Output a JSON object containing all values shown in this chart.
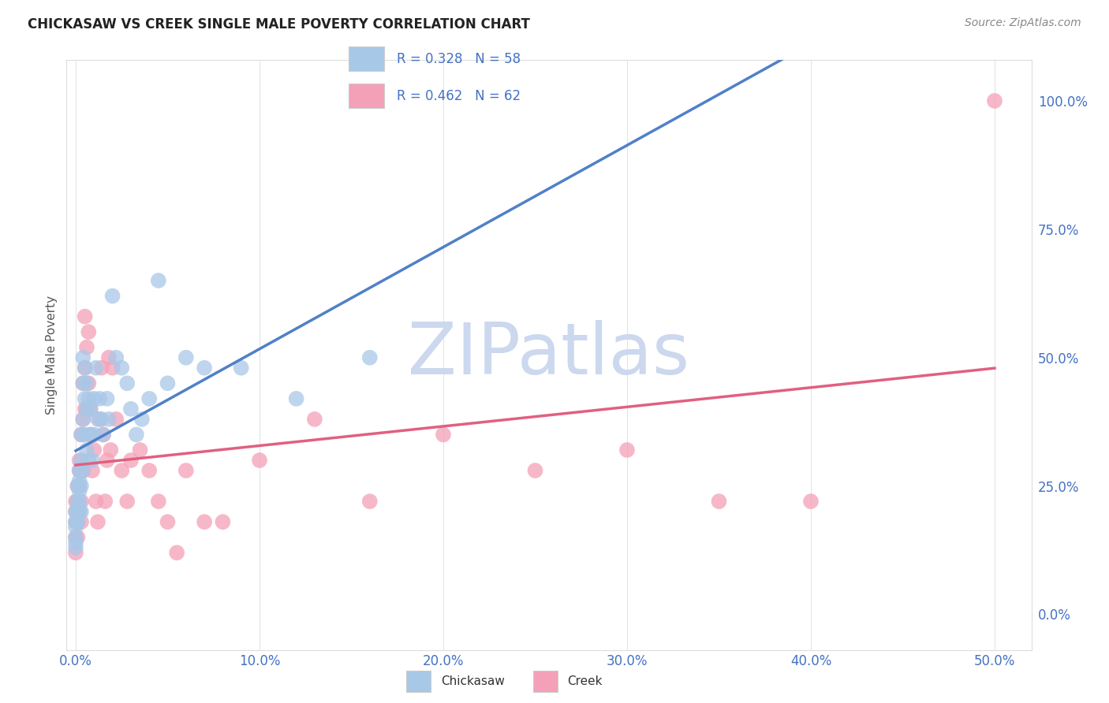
{
  "title": "CHICKASAW VS CREEK SINGLE MALE POVERTY CORRELATION CHART",
  "source": "Source: ZipAtlas.com",
  "xlabel_ticks": [
    "0.0%",
    "10.0%",
    "20.0%",
    "30.0%",
    "40.0%",
    "50.0%"
  ],
  "ylabel_ticks": [
    "0.0%",
    "25.0%",
    "50.0%",
    "75.0%",
    "100.0%"
  ],
  "xlabel_vals": [
    0.0,
    0.1,
    0.2,
    0.3,
    0.4,
    0.5
  ],
  "ylabel_vals": [
    0.0,
    0.25,
    0.5,
    0.75,
    1.0
  ],
  "xlim": [
    -0.005,
    0.52
  ],
  "ylim": [
    -0.07,
    1.08
  ],
  "chickasaw_R": 0.328,
  "chickasaw_N": 58,
  "creek_R": 0.462,
  "creek_N": 62,
  "chickasaw_color": "#a8c8e8",
  "creek_color": "#f4a0b8",
  "chickasaw_line_color": "#5080c8",
  "creek_line_color": "#e06080",
  "trendline_dash_color": "#b0b8c8",
  "ylabel": "Single Male Poverty",
  "axis_tick_color": "#4472c4",
  "watermark_color": "#ccd8ee",
  "legend_border_color": "#cccccc",
  "grid_color": "#dddddd",
  "chickasaw_x": [
    0.0,
    0.0,
    0.0,
    0.0,
    0.0,
    0.0,
    0.001,
    0.001,
    0.001,
    0.001,
    0.002,
    0.002,
    0.002,
    0.002,
    0.002,
    0.003,
    0.003,
    0.003,
    0.003,
    0.004,
    0.004,
    0.004,
    0.004,
    0.005,
    0.005,
    0.005,
    0.006,
    0.006,
    0.006,
    0.007,
    0.007,
    0.008,
    0.008,
    0.009,
    0.01,
    0.01,
    0.011,
    0.012,
    0.013,
    0.014,
    0.015,
    0.017,
    0.018,
    0.02,
    0.022,
    0.025,
    0.028,
    0.03,
    0.033,
    0.036,
    0.04,
    0.045,
    0.05,
    0.06,
    0.07,
    0.09,
    0.12,
    0.16
  ],
  "chickasaw_y": [
    0.2,
    0.18,
    0.17,
    0.15,
    0.14,
    0.13,
    0.25,
    0.22,
    0.2,
    0.18,
    0.28,
    0.26,
    0.24,
    0.22,
    0.2,
    0.35,
    0.3,
    0.25,
    0.2,
    0.5,
    0.45,
    0.38,
    0.28,
    0.48,
    0.42,
    0.35,
    0.45,
    0.4,
    0.32,
    0.42,
    0.3,
    0.4,
    0.35,
    0.3,
    0.42,
    0.35,
    0.48,
    0.38,
    0.42,
    0.38,
    0.35,
    0.42,
    0.38,
    0.62,
    0.5,
    0.48,
    0.45,
    0.4,
    0.35,
    0.38,
    0.42,
    0.65,
    0.45,
    0.5,
    0.48,
    0.48,
    0.42,
    0.5
  ],
  "creek_x": [
    0.0,
    0.0,
    0.0,
    0.0,
    0.0,
    0.001,
    0.001,
    0.001,
    0.001,
    0.002,
    0.002,
    0.002,
    0.002,
    0.003,
    0.003,
    0.003,
    0.003,
    0.004,
    0.004,
    0.004,
    0.005,
    0.005,
    0.005,
    0.006,
    0.006,
    0.007,
    0.007,
    0.008,
    0.008,
    0.009,
    0.01,
    0.011,
    0.012,
    0.013,
    0.014,
    0.015,
    0.016,
    0.017,
    0.018,
    0.019,
    0.02,
    0.022,
    0.025,
    0.028,
    0.03,
    0.035,
    0.04,
    0.045,
    0.05,
    0.055,
    0.06,
    0.07,
    0.08,
    0.1,
    0.13,
    0.16,
    0.2,
    0.25,
    0.3,
    0.35,
    0.4,
    0.5
  ],
  "creek_y": [
    0.22,
    0.2,
    0.18,
    0.15,
    0.12,
    0.25,
    0.22,
    0.18,
    0.15,
    0.3,
    0.28,
    0.25,
    0.2,
    0.35,
    0.28,
    0.22,
    0.18,
    0.45,
    0.38,
    0.28,
    0.58,
    0.48,
    0.4,
    0.52,
    0.4,
    0.55,
    0.45,
    0.4,
    0.35,
    0.28,
    0.32,
    0.22,
    0.18,
    0.38,
    0.48,
    0.35,
    0.22,
    0.3,
    0.5,
    0.32,
    0.48,
    0.38,
    0.28,
    0.22,
    0.3,
    0.32,
    0.28,
    0.22,
    0.18,
    0.12,
    0.28,
    0.18,
    0.18,
    0.3,
    0.38,
    0.22,
    0.35,
    0.28,
    0.32,
    0.22,
    0.22,
    1.0
  ]
}
